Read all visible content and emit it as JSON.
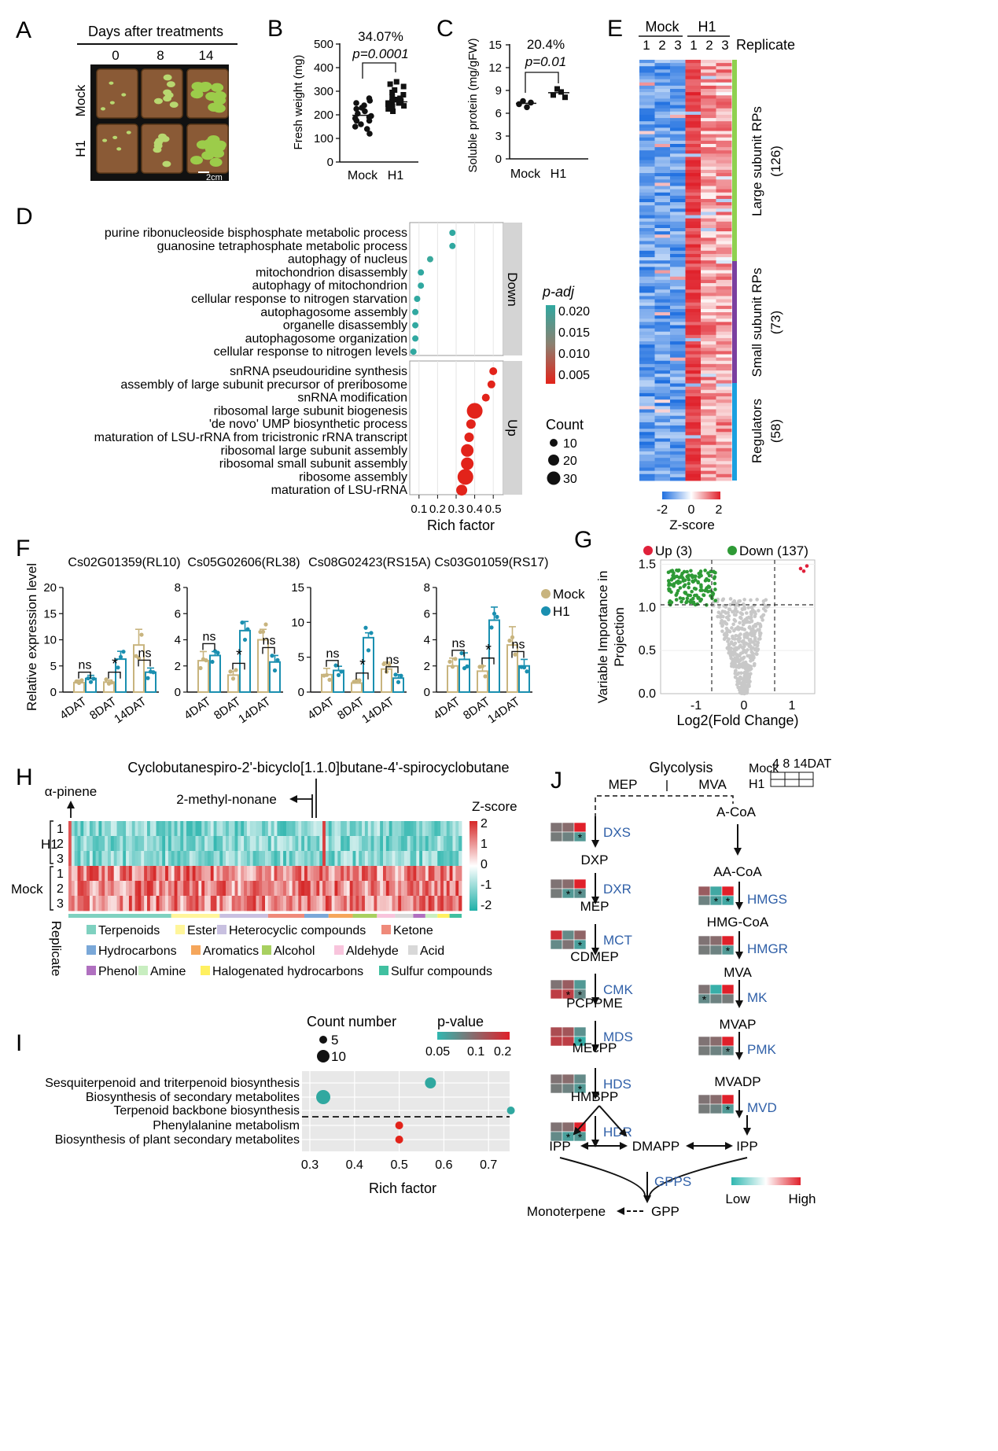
{
  "panel_letters": [
    "A",
    "B",
    "C",
    "D",
    "E",
    "F",
    "G",
    "H",
    "I",
    "J"
  ],
  "colors": {
    "mock": "#c8b47e",
    "h1": "#1a8fb0",
    "red_dot": "#e2231a",
    "teal_dot": "#30a8a0",
    "heat_blue": "#1e6fe0",
    "heat_red": "#e0202a",
    "heat_teal": "#2fb7b0",
    "bar_green": "#8fd14f",
    "bar_purple": "#7b3fa0",
    "bar_blue": "#1aa0e0",
    "volcano_green": "#2e9a36",
    "volcano_red": "#e0203a",
    "flow_blue": "#3060a8"
  },
  "panelA": {
    "title": "Days after treatments",
    "days": [
      "0",
      "8",
      "14"
    ],
    "rows": [
      "Mock",
      "H1"
    ],
    "scale": "2cm"
  },
  "panelB": {
    "ylabel": "Fresh weight (mg)",
    "pct": "34.07%",
    "p": "p=0.0001",
    "yticks": [
      "0",
      "100",
      "200",
      "300",
      "400",
      "500"
    ],
    "groups": [
      "Mock",
      "H1"
    ]
  },
  "panelC": {
    "ylabel": "Soluble protein (mg/gFW)",
    "pct": "20.4%",
    "p": "p=0.01",
    "yticks": [
      "0",
      "3",
      "6",
      "9",
      "12",
      "15"
    ],
    "groups": [
      "Mock",
      "H1"
    ]
  },
  "panelD": {
    "down_terms": [
      "purine ribonucleoside bisphosphate metabolic process",
      "guanosine tetraphosphate metabolic process",
      "autophagy of nucleus",
      "mitochondrion disassembly",
      "autophagy of mitochondrion",
      "cellular response to nitrogen starvation",
      "autophagosome assembly",
      "organelle disassembly",
      "autophagosome organization",
      "cellular response to nitrogen levels"
    ],
    "up_terms": [
      "snRNA pseudouridine synthesis",
      "assembly of large subunit precursor of preribosome",
      "snRNA modification",
      "ribosomal large subunit biogenesis",
      "'de novo' UMP biosynthetic process",
      "maturation of LSU-rRNA from tricistronic rRNA transcript",
      "ribosomal large subunit assembly",
      "ribosomal small subunit assembly",
      "ribosome assembly",
      "maturation of LSU-rRNA"
    ],
    "facet_down": "Down",
    "facet_up": "Up",
    "xlabel": "Rich factor",
    "xticks": [
      "0.1",
      "0.2",
      "0.3",
      "0.4",
      "0.5"
    ],
    "legend_padj": "p-adj",
    "padj_ticks": [
      "0.020",
      "0.015",
      "0.010",
      "0.005"
    ],
    "legend_count": "Count",
    "count_ticks": [
      "10",
      "20",
      "30"
    ]
  },
  "panelE": {
    "groups": [
      "Mock",
      "H1"
    ],
    "replicates": [
      "1",
      "2",
      "3",
      "1",
      "2",
      "3"
    ],
    "replicate_label": "Replicate",
    "categories": [
      {
        "name": "Large subunit RPs",
        "count": "(126)"
      },
      {
        "name": "Small subunit RPs",
        "count": "(73)"
      },
      {
        "name": "Regulators",
        "count": "(58)"
      }
    ],
    "scale_ticks": [
      "-2",
      "0",
      "2"
    ],
    "scale_label": "Z-score"
  },
  "panelF": {
    "ylabel": "Relative expression level",
    "xcats": [
      "4DAT",
      "8DAT",
      "14DAT"
    ],
    "legend": [
      "Mock",
      "H1"
    ],
    "genes": [
      {
        "title": "Cs02G01359(RL10)",
        "yticks": [
          "0",
          "5",
          "10",
          "15",
          "20"
        ],
        "sig": [
          "ns",
          "*",
          "ns"
        ]
      },
      {
        "title": "Cs05G02606(RL38)",
        "yticks": [
          "0",
          "2",
          "4",
          "6",
          "8"
        ],
        "sig": [
          "ns",
          "*",
          "ns"
        ]
      },
      {
        "title": "Cs08G02423(RS15A)",
        "yticks": [
          "0",
          "5",
          "10",
          "15"
        ],
        "sig": [
          "ns",
          "*",
          "ns"
        ]
      },
      {
        "title": "Cs03G01059(RS17)",
        "yticks": [
          "0",
          "2",
          "4",
          "6",
          "8"
        ],
        "sig": [
          "ns",
          "*",
          "ns"
        ]
      }
    ]
  },
  "panelG": {
    "legend_up": "Up (3)",
    "legend_down": "Down (137)",
    "ylabel1": "Variable Importance in",
    "ylabel2": "Projection",
    "xlabel": "Log2(Fold Change)",
    "yticks": [
      "0.0",
      "0.5",
      "1.0",
      "1.5"
    ],
    "xticks": [
      "-1",
      "0",
      "1"
    ]
  },
  "panelH": {
    "top_label": "Cyclobutanespiro-2'-bicyclo[1.1.0]butane-4'-spirocyclobutane",
    "label_pinene": "α-pinene",
    "label_nonane": "2-methyl-nonane",
    "groups": [
      "H1",
      "Mock"
    ],
    "rows": [
      "1",
      "2",
      "3",
      "1",
      "2",
      "3"
    ],
    "replicate": "Replicate",
    "scale_title": "Z-score",
    "scale_ticks": [
      "2",
      "1",
      "0",
      "-1",
      "-2"
    ],
    "classes": [
      "Terpenoids",
      "Ester",
      "Heterocyclic compounds",
      "Ketone",
      "Hydrocarbons",
      "Aromatics",
      "Alcohol",
      "Aldehyde",
      "Acid",
      "Phenol",
      "Amine",
      "Halogenated hydrocarbons",
      "Sulfur compounds"
    ],
    "class_colors": [
      "#7fd1c0",
      "#fff59a",
      "#c8c0e0",
      "#ef8a7a",
      "#7aa8d8",
      "#f5a65b",
      "#a8d060",
      "#f8c4dc",
      "#d8d8d8",
      "#b070c0",
      "#c8eec0",
      "#fff060",
      "#40c0a0"
    ]
  },
  "panelI": {
    "legend_count": "Count number",
    "count_ticks": [
      "5",
      "10"
    ],
    "legend_p": "p-value",
    "p_ticks": [
      "0.05",
      "0.1",
      "0.2"
    ],
    "terms": [
      "Sesquiterpenoid and triterpenoid biosynthesis",
      "Biosynthesis of secondary metabolites",
      "Terpenoid backbone biosynthesis",
      "Phenylalanine metabolism",
      "Biosynthesis of plant secondary metabolites"
    ],
    "xlabel": "Rich factor",
    "xticks": [
      "0.3",
      "0.4",
      "0.5",
      "0.6",
      "0.7"
    ]
  },
  "panelJ": {
    "glycolysis": "Glycolysis",
    "mep_head": "MEP",
    "mva_head": "MVA",
    "legend_mock": "Mock",
    "legend_h1": "H1",
    "legend_days": "4  8  14DAT",
    "mep_nodes": [
      "DXP",
      "MEP",
      "CDMEP",
      "PCPPME",
      "MEcPP",
      "HMBPP"
    ],
    "mep_enzymes": [
      "DXS",
      "DXR",
      "MCT",
      "CMK",
      "MDS",
      "HDS",
      "HDR"
    ],
    "mva_nodes": [
      "A-CoA",
      "AA-CoA",
      "HMG-CoA",
      "MVA",
      "MVAP",
      "MVADP"
    ],
    "mva_enzymes": [
      "HMGS",
      "HMGR",
      "MK",
      "PMK",
      "MVD"
    ],
    "ipp": "IPP",
    "dmapp": "DMAPP",
    "gpps": "GPPS",
    "gpp": "GPP",
    "monoterpene": "Monoterpene",
    "low": "Low",
    "high": "High"
  }
}
